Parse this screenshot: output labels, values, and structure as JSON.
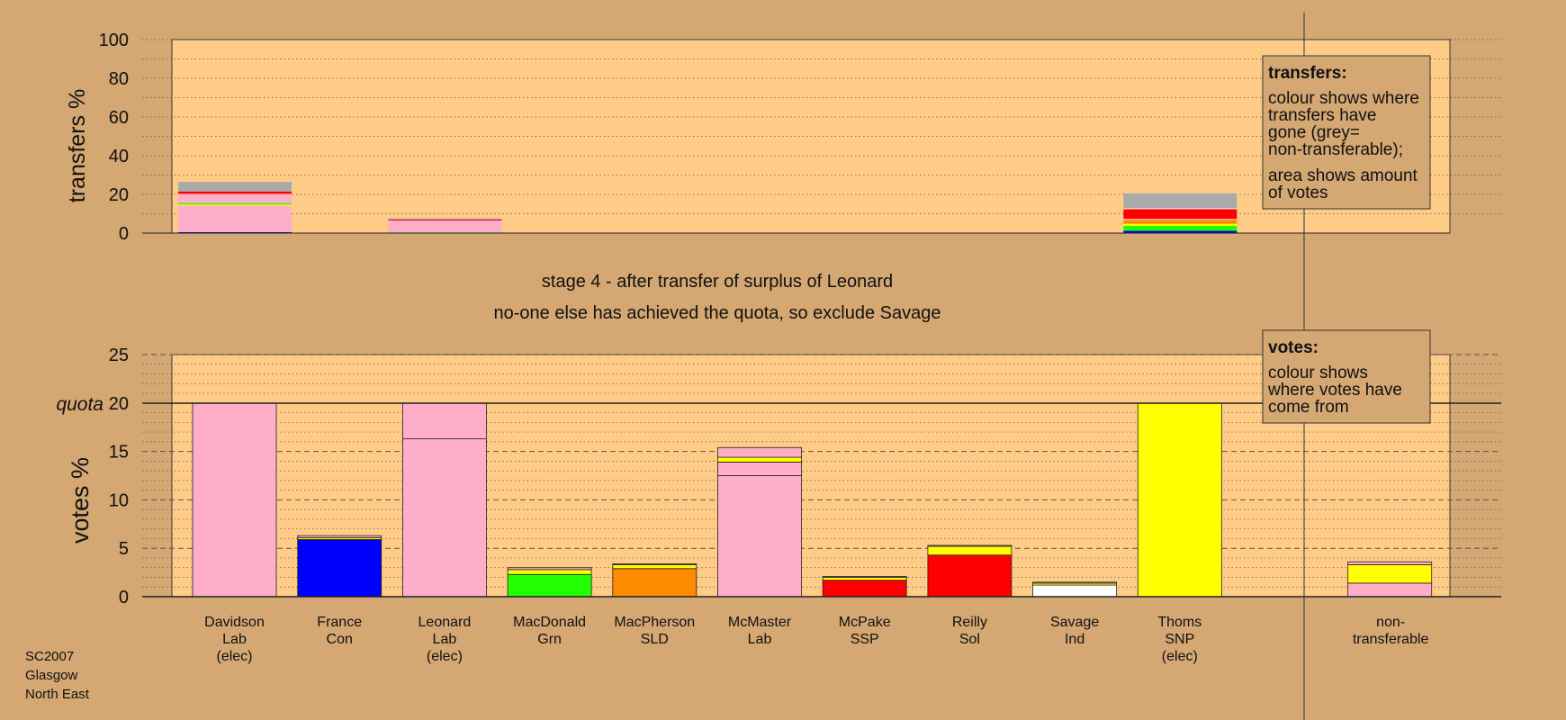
{
  "chart_data": [
    {
      "type": "bar",
      "subtype": "stacked",
      "title": "stage 4 - after transfer of surplus of Leonard",
      "subtitle": "no-one else has achieved the quota, so exclude Savage",
      "ylabel": "transfers %",
      "ylim": [
        0,
        100
      ],
      "yticks": [
        "0",
        "20",
        "40",
        "60",
        "80",
        "100"
      ],
      "grid": true,
      "legend": {
        "placement": "top-right",
        "heading": "transfers:",
        "text1": "colour shows where transfers have gone (grey= non-transferable);",
        "text2": "area shows amount of votes"
      },
      "bars": [
        {
          "candidate": "Davidson",
          "segments": [
            {
              "color": "#0000ff",
              "from": 0,
              "to": 0.5
            },
            {
              "color": "#ffaec9",
              "from": 0.5,
              "to": 14.2
            },
            {
              "color": "#ffff00",
              "from": 14.2,
              "to": 14.8
            },
            {
              "color": "#22ff00",
              "from": 14.8,
              "to": 15.5
            },
            {
              "color": "#ffaec9",
              "from": 15.5,
              "to": 20.3
            },
            {
              "color": "#ff0000",
              "from": 20.3,
              "to": 21.5
            },
            {
              "color": "#aaaaaa",
              "from": 21.5,
              "to": 26.5
            }
          ]
        },
        {
          "candidate": "Leonard",
          "segments": [
            {
              "color": "#22ff00",
              "from": 0,
              "to": 0.4
            },
            {
              "color": "#ffaec9",
              "from": 0.4,
              "to": 6.5
            },
            {
              "color": "#ff0000",
              "from": 6.5,
              "to": 7.0
            },
            {
              "color": "#aaaaaa",
              "from": 7.0,
              "to": 7.6
            }
          ]
        },
        {
          "candidate": "Thoms",
          "segments": [
            {
              "color": "#0000ff",
              "from": 0,
              "to": 1.2
            },
            {
              "color": "#22ff00",
              "from": 1.2,
              "to": 3.8
            },
            {
              "color": "#ffff00",
              "from": 3.8,
              "to": 4.8
            },
            {
              "color": "#ff8c00",
              "from": 4.8,
              "to": 6.8
            },
            {
              "color": "#ffaec9",
              "from": 6.8,
              "to": 7.4
            },
            {
              "color": "#ff0000",
              "from": 7.4,
              "to": 12.4
            },
            {
              "color": "#ffffff",
              "from": 12.4,
              "to": 12.8
            },
            {
              "color": "#aaaaaa",
              "from": 12.8,
              "to": 20.5
            }
          ]
        }
      ]
    },
    {
      "type": "bar",
      "subtype": "stacked",
      "ylabel": "votes %",
      "ylim": [
        0,
        25
      ],
      "yticks": [
        "0",
        "5",
        "10",
        "15",
        "20",
        "25"
      ],
      "quota_label": "quota",
      "quota": 20,
      "grid": true,
      "legend": {
        "placement": "top-right",
        "heading": "votes:",
        "text1": "colour shows where votes have come from"
      },
      "categories": [
        {
          "name": "Davidson",
          "party": "Lab",
          "status": "(elec)"
        },
        {
          "name": "France",
          "party": "Con",
          "status": ""
        },
        {
          "name": "Leonard",
          "party": "Lab",
          "status": "(elec)"
        },
        {
          "name": "MacDonald",
          "party": "Grn",
          "status": ""
        },
        {
          "name": "MacPherson",
          "party": "SLD",
          "status": ""
        },
        {
          "name": "McMaster",
          "party": "Lab",
          "status": ""
        },
        {
          "name": "McPake",
          "party": "SSP",
          "status": ""
        },
        {
          "name": "Reilly",
          "party": "Sol",
          "status": ""
        },
        {
          "name": "Savage",
          "party": "Ind",
          "status": ""
        },
        {
          "name": "Thoms",
          "party": "SNP",
          "status": "(elec)"
        },
        {
          "name": "",
          "party": "",
          "status": ""
        },
        {
          "name": "non-",
          "party": "transferable",
          "status": ""
        }
      ],
      "bars": [
        {
          "segments": [
            {
              "color": "#ffaec9",
              "from": 0,
              "to": 20
            }
          ]
        },
        {
          "segments": [
            {
              "color": "#0000ff",
              "from": 0,
              "to": 5.9
            },
            {
              "color": "#ffff00",
              "from": 5.9,
              "to": 6.1
            },
            {
              "color": "#ffaec9",
              "from": 6.1,
              "to": 6.3
            }
          ]
        },
        {
          "segments": [
            {
              "color": "#ffaec9",
              "from": 0,
              "to": 16.3
            },
            {
              "color": "#ffaec9",
              "from": 16.3,
              "to": 20
            }
          ]
        },
        {
          "segments": [
            {
              "color": "#22ff00",
              "from": 0,
              "to": 2.3
            },
            {
              "color": "#ffff00",
              "from": 2.3,
              "to": 2.8
            },
            {
              "color": "#ffaec9",
              "from": 2.8,
              "to": 3.0
            }
          ]
        },
        {
          "segments": [
            {
              "color": "#ff8c00",
              "from": 0,
              "to": 2.9
            },
            {
              "color": "#ffff00",
              "from": 2.9,
              "to": 3.3
            },
            {
              "color": "#ffaec9",
              "from": 3.3,
              "to": 3.4
            }
          ]
        },
        {
          "segments": [
            {
              "color": "#ffaec9",
              "from": 0,
              "to": 12.5
            },
            {
              "color": "#ffaec9",
              "from": 12.5,
              "to": 13.9
            },
            {
              "color": "#ffff00",
              "from": 13.9,
              "to": 14.4
            },
            {
              "color": "#ffaec9",
              "from": 14.4,
              "to": 15.4
            }
          ]
        },
        {
          "segments": [
            {
              "color": "#ff0000",
              "from": 0,
              "to": 1.7
            },
            {
              "color": "#ffff00",
              "from": 1.7,
              "to": 2.0
            },
            {
              "color": "#ffaec9",
              "from": 2.0,
              "to": 2.1
            }
          ]
        },
        {
          "segments": [
            {
              "color": "#ff0000",
              "from": 0,
              "to": 4.3
            },
            {
              "color": "#ffff00",
              "from": 4.3,
              "to": 5.2
            },
            {
              "color": "#ffaec9",
              "from": 5.2,
              "to": 5.3
            }
          ]
        },
        {
          "segments": [
            {
              "color": "#ffffff",
              "from": 0,
              "to": 1.2
            },
            {
              "color": "#ffff00",
              "from": 1.2,
              "to": 1.4
            },
            {
              "color": "#ffaec9",
              "from": 1.4,
              "to": 1.5
            }
          ]
        },
        {
          "segments": [
            {
              "color": "#ffff00",
              "from": 0,
              "to": 20
            }
          ]
        },
        null,
        {
          "segments": [
            {
              "color": "#ffaec9",
              "from": 0,
              "to": 1.4
            },
            {
              "color": "#ffff00",
              "from": 1.4,
              "to": 3.3
            },
            {
              "color": "#ffaec9",
              "from": 3.3,
              "to": 3.6
            }
          ]
        }
      ]
    }
  ],
  "footer": {
    "line1": "SC2007",
    "line2": "Glasgow",
    "line3": "North East"
  },
  "colors": {
    "background": "#d4a773",
    "plot_area": "#ffcc88",
    "non_transferable": "#aaaaaa"
  }
}
